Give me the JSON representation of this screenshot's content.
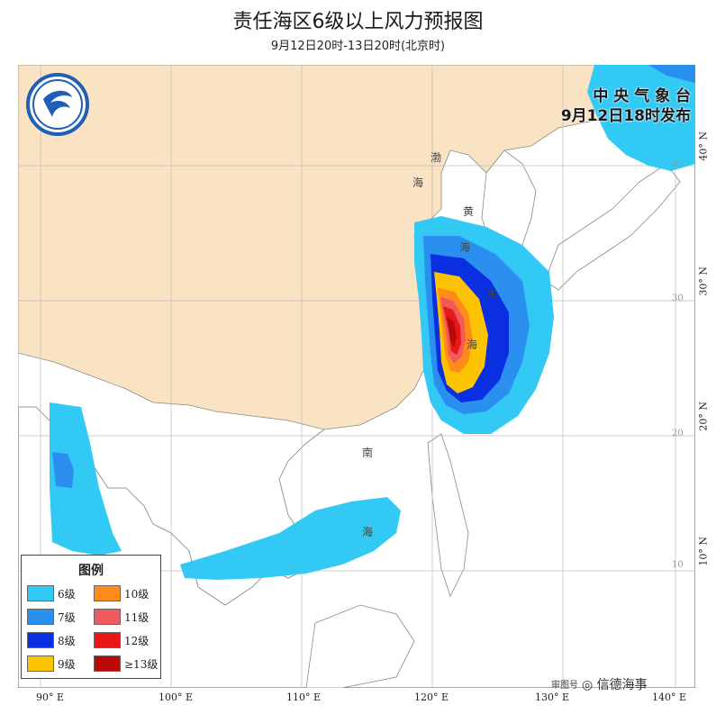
{
  "header": {
    "title": "责任海区6级以上风力预报图",
    "subtitle": "9月12日20时-13日20时(北京时)"
  },
  "issuer": {
    "name": "中 央 气 象 台",
    "issue_time": "9月12日18时发布"
  },
  "legend": {
    "title": "图例",
    "items": [
      {
        "label": "6级",
        "color": "#33c9f5"
      },
      {
        "label": "10级",
        "color": "#ff8c1a"
      },
      {
        "label": "7级",
        "color": "#2b8ff0"
      },
      {
        "label": "11级",
        "color": "#f05a5a"
      },
      {
        "label": "8级",
        "color": "#0a2fe0"
      },
      {
        "label": "12级",
        "color": "#e81818"
      },
      {
        "label": "9级",
        "color": "#fcc400"
      },
      {
        "label": "≥13级",
        "color": "#b80a0a"
      }
    ]
  },
  "sea_labels": {
    "bohai": [
      "渤",
      "海"
    ],
    "yellow": [
      "黄",
      "海"
    ],
    "east": [
      "东",
      "海"
    ],
    "south": [
      "南",
      "海"
    ]
  },
  "axes": {
    "lon_labels": [
      "90° E",
      "100° E",
      "110° E",
      "120° E",
      "130° E",
      "140° E"
    ],
    "lat_labels": [
      "40° N",
      "30° N",
      "20° N",
      "10° N"
    ],
    "lat_inner": [
      "40",
      "30",
      "20",
      "10"
    ]
  },
  "footer": {
    "audit_mark": "审图号",
    "watermark": "信德海事"
  },
  "colors": {
    "land": "#fae3c3",
    "sea": "#ffffff"
  }
}
